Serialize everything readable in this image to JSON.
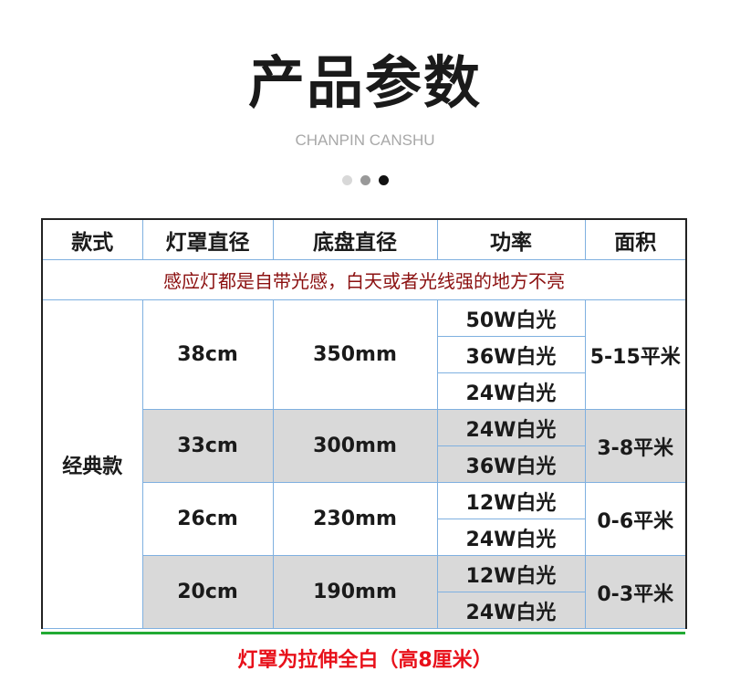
{
  "title": "产品参数",
  "subtitle": "CHANPIN CANSHU",
  "dots": [
    {
      "color": "#d8d8d8"
    },
    {
      "color": "#999999"
    },
    {
      "color": "#111111"
    }
  ],
  "table": {
    "headers": [
      "款式",
      "灯罩直径",
      "底盘直径",
      "功率",
      "面积"
    ],
    "note": "感应灯都是自带光感，白天或者光线强的地方不亮",
    "style": "经典款",
    "groups": [
      {
        "shade": "38cm",
        "base": "350mm",
        "powers": [
          "50W白光",
          "36W白光",
          "24W白光"
        ],
        "area": "5-15平米"
      },
      {
        "shade": "33cm",
        "base": "300mm",
        "powers": [
          "24W白光",
          "36W白光"
        ],
        "area": "3-8平米"
      },
      {
        "shade": "26cm",
        "base": "230mm",
        "powers": [
          "12W白光",
          "24W白光"
        ],
        "area": "0-6平米"
      },
      {
        "shade": "20cm",
        "base": "190mm",
        "powers": [
          "12W白光",
          "24W白光"
        ],
        "area": "0-3平米"
      }
    ]
  },
  "footer": "灯罩为拉伸全白（高8厘米）",
  "colors": {
    "note": "#8b1010",
    "footer": "#e8101a",
    "border": "#7fb0e0",
    "shaded": "#d9d9d9",
    "divider": "#22aa33"
  }
}
